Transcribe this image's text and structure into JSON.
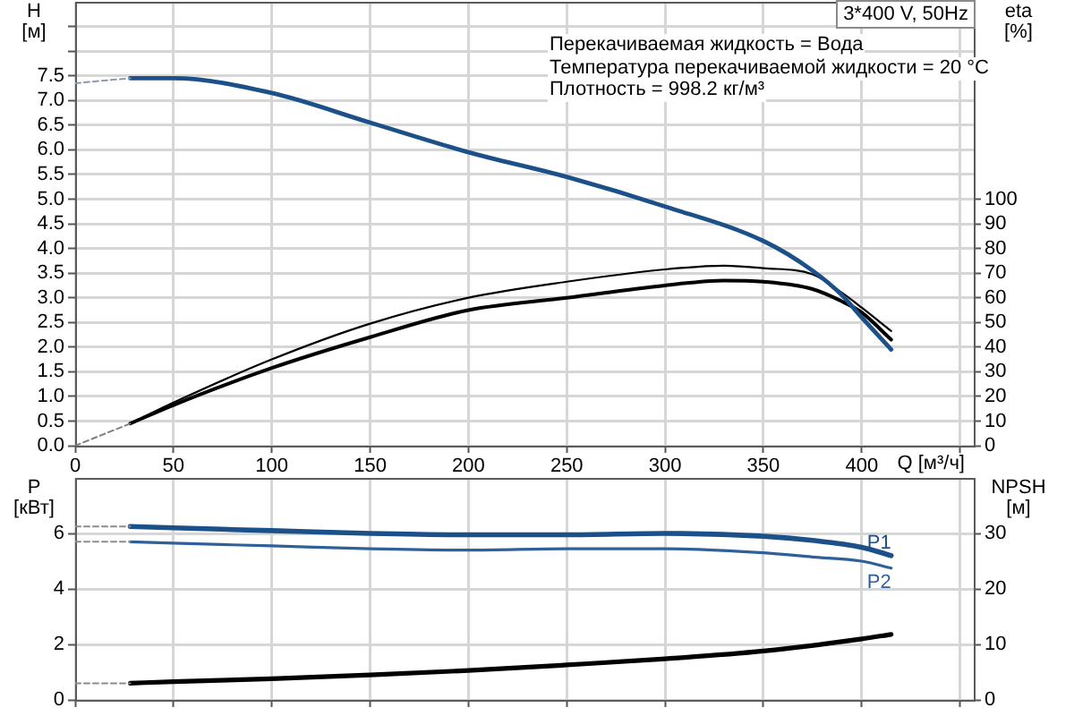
{
  "chart_data": [
    {
      "type": "line",
      "title": "3*400 V, 50Hz",
      "annotations": [
        "Перекачиваемая жидкость = Вода",
        "Температура перекачиваемой жидкости = 20 °C",
        "Плотность = 998.2 кг/м³"
      ],
      "xlabel": "Q [м³/ч]",
      "ylabel": "H [м]",
      "y2label": "eta [%]",
      "xlim": [
        0,
        457
      ],
      "xticks": [
        0,
        50,
        100,
        150,
        200,
        250,
        300,
        350,
        400,
        {
          "value": 450,
          "label": null
        }
      ],
      "ylim": [
        0,
        9
      ],
      "yticks": [
        {
          "value": 0,
          "label": "0.0"
        },
        0.5,
        {
          "value": 1,
          "label": "1.0"
        },
        1.5,
        {
          "value": 2,
          "label": "2.0"
        },
        2.5,
        {
          "value": 3,
          "label": "3.0"
        },
        3.5,
        {
          "value": 4,
          "label": "4.0"
        },
        4.5,
        {
          "value": 5,
          "label": "5.0"
        },
        5.5,
        {
          "value": 6,
          "label": "6.0"
        },
        6.5,
        {
          "value": 7,
          "label": "7.0"
        },
        7.5,
        {
          "value": 8,
          "label": null
        },
        {
          "value": 8.5,
          "label": null
        }
      ],
      "y2lim": [
        0,
        180
      ],
      "y2ticks": [
        0,
        10,
        20,
        30,
        40,
        50,
        60,
        70,
        80,
        90,
        100
      ],
      "grid": true,
      "series": [
        {
          "color": "#8a9ab0",
          "line_style": "dashed",
          "x": [
            0,
            28
          ],
          "values": [
            7.35,
            7.45
          ]
        },
        {
          "color": "#1b5188",
          "x": [
            28,
            50,
            100,
            150,
            200,
            250,
            300,
            350,
            375,
            390,
            400,
            415
          ],
          "values": [
            7.45,
            7.45,
            7.15,
            6.55,
            5.95,
            5.45,
            4.85,
            4.15,
            3.55,
            3.05,
            2.6,
            1.95
          ]
        },
        {
          "color": "#808080",
          "line_style": "dashed",
          "axis": "y2",
          "x": [
            0,
            28
          ],
          "values": [
            0,
            9
          ]
        },
        {
          "color": "#000000",
          "axis": "y2",
          "x": [
            28,
            50,
            100,
            150,
            200,
            250,
            300,
            330,
            350,
            375,
            390,
            400,
            415
          ],
          "values": [
            9,
            17.5,
            35,
            49.5,
            60,
            66.5,
            71.5,
            73,
            72,
            69.5,
            62,
            56,
            46.5
          ]
        },
        {
          "color": "#000000",
          "axis": "y2",
          "x": [
            28,
            50,
            100,
            150,
            200,
            250,
            300,
            330,
            350,
            375,
            390,
            400,
            415
          ],
          "values": [
            9,
            16.5,
            31.5,
            44,
            55,
            60,
            65,
            67,
            66.5,
            63.5,
            58.5,
            54,
            43
          ]
        }
      ]
    },
    {
      "type": "line",
      "ylabel": "P [кВт]",
      "y2label": "NPSH [м]",
      "xlim": [
        0,
        457
      ],
      "xticks": [
        0,
        50,
        100,
        150,
        200,
        250,
        300,
        350,
        400,
        {
          "value": 450,
          "label": null
        }
      ],
      "ylim": [
        0,
        8
      ],
      "yticks": [
        0,
        2,
        4,
        6
      ],
      "y2lim": [
        0,
        40
      ],
      "y2ticks": [
        0,
        10,
        20,
        30
      ],
      "grid": true,
      "tick_labels": "y",
      "series": [
        {
          "color": "#8c8c8c",
          "line_style": "dashed",
          "x": [
            0,
            28
          ],
          "values": [
            6.25,
            6.25
          ]
        },
        {
          "name": "P1",
          "color": "#1b5188",
          "x": [
            28,
            50,
            100,
            150,
            200,
            250,
            300,
            350,
            375,
            400,
            415
          ],
          "values": [
            6.25,
            6.2,
            6.1,
            6.0,
            5.95,
            5.95,
            6.0,
            5.9,
            5.75,
            5.5,
            5.2
          ]
        },
        {
          "color": "#8c8c8c",
          "line_style": "dashed",
          "x": [
            0,
            28
          ],
          "values": [
            5.7,
            5.7
          ]
        },
        {
          "name": "P2",
          "color": "#2f6099",
          "x": [
            28,
            50,
            100,
            150,
            200,
            250,
            300,
            350,
            375,
            400,
            415
          ],
          "values": [
            5.7,
            5.65,
            5.55,
            5.45,
            5.4,
            5.45,
            5.45,
            5.3,
            5.15,
            5.0,
            4.75
          ]
        },
        {
          "color": "#8c8c8c",
          "line_style": "dashed",
          "axis": "y2",
          "x": [
            0,
            28
          ],
          "values": [
            3,
            3
          ]
        },
        {
          "color": "#000000",
          "axis": "y2",
          "x": [
            28,
            50,
            100,
            150,
            200,
            250,
            300,
            350,
            400,
            415
          ],
          "values": [
            3,
            3.3,
            3.8,
            4.5,
            5.3,
            6.3,
            7.4,
            8.8,
            11,
            11.8
          ]
        }
      ]
    }
  ]
}
